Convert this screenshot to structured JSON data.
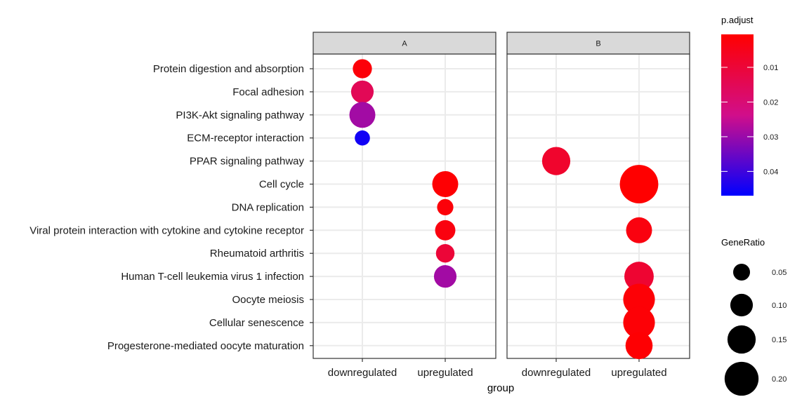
{
  "chart_data": {
    "type": "scatter",
    "subtype": "dot-plot-faceted",
    "xlabel": "group",
    "ylabel": "",
    "facets": [
      "A",
      "B"
    ],
    "groups": [
      "downregulated",
      "upregulated"
    ],
    "terms": [
      "Protein digestion and absorption",
      "Focal adhesion",
      "PI3K-Akt signaling pathway",
      "ECM-receptor interaction",
      "PPAR signaling pathway",
      "Cell cycle",
      "DNA replication",
      "Viral protein interaction with cytokine and cytokine receptor",
      "Rheumatoid arthritis",
      "Human T-cell leukemia virus 1 infection",
      "Oocyte meiosis",
      "Cellular senescence",
      "Progesterone-mediated oocyte maturation"
    ],
    "points": [
      {
        "facet": "A",
        "group": "downregulated",
        "term": "Protein digestion and absorption",
        "p_adjust": 0.002,
        "gene_ratio": 0.07
      },
      {
        "facet": "A",
        "group": "downregulated",
        "term": "Focal adhesion",
        "p_adjust": 0.015,
        "gene_ratio": 0.1
      },
      {
        "facet": "A",
        "group": "downregulated",
        "term": "PI3K-Akt signaling pathway",
        "p_adjust": 0.029,
        "gene_ratio": 0.13
      },
      {
        "facet": "A",
        "group": "downregulated",
        "term": "ECM-receptor interaction",
        "p_adjust": 0.045,
        "gene_ratio": 0.035
      },
      {
        "facet": "A",
        "group": "upregulated",
        "term": "Cell cycle",
        "p_adjust": 0.001,
        "gene_ratio": 0.13
      },
      {
        "facet": "A",
        "group": "upregulated",
        "term": "DNA replication",
        "p_adjust": 0.002,
        "gene_ratio": 0.045
      },
      {
        "facet": "A",
        "group": "upregulated",
        "term": "Viral protein interaction with cytokine and cytokine receptor",
        "p_adjust": 0.003,
        "gene_ratio": 0.08
      },
      {
        "facet": "A",
        "group": "upregulated",
        "term": "Rheumatoid arthritis",
        "p_adjust": 0.01,
        "gene_ratio": 0.065
      },
      {
        "facet": "A",
        "group": "upregulated",
        "term": "Human T-cell leukemia virus 1 infection",
        "p_adjust": 0.029,
        "gene_ratio": 0.1
      },
      {
        "facet": "B",
        "group": "downregulated",
        "term": "PPAR signaling pathway",
        "p_adjust": 0.008,
        "gene_ratio": 0.15
      },
      {
        "facet": "B",
        "group": "upregulated",
        "term": "Cell cycle",
        "p_adjust": 0.0005,
        "gene_ratio": 0.24
      },
      {
        "facet": "B",
        "group": "upregulated",
        "term": "Viral protein interaction with cytokine and cytokine receptor",
        "p_adjust": 0.003,
        "gene_ratio": 0.13
      },
      {
        "facet": "B",
        "group": "upregulated",
        "term": "Human T-cell leukemia virus 1 infection",
        "p_adjust": 0.009,
        "gene_ratio": 0.16
      },
      {
        "facet": "B",
        "group": "upregulated",
        "term": "Oocyte meiosis",
        "p_adjust": 0.0015,
        "gene_ratio": 0.18
      },
      {
        "facet": "B",
        "group": "upregulated",
        "term": "Cellular senescence",
        "p_adjust": 0.0015,
        "gene_ratio": 0.18
      },
      {
        "facet": "B",
        "group": "upregulated",
        "term": "Progesterone-mediated oocyte maturation",
        "p_adjust": 0.001,
        "gene_ratio": 0.14
      }
    ],
    "color_legend": {
      "title": "p.adjust",
      "ticks": [
        0.01,
        0.02,
        0.03,
        0.04
      ],
      "tick_labels": [
        "0.01",
        "0.02",
        "0.03",
        "0.04"
      ],
      "range": [
        0.0005,
        0.047
      ],
      "low_color": "#ff0000",
      "high_color": "#0000ff"
    },
    "size_legend": {
      "title": "GeneRatio",
      "values": [
        0.05,
        0.1,
        0.15,
        0.2
      ],
      "labels": [
        "0.05",
        "0.10",
        "0.15",
        "0.20"
      ]
    },
    "grid": true,
    "legend_position": "right",
    "colors": {
      "strip_fill": "#d9d9d9",
      "panel_border": "#333333",
      "grid_line": "#ebebeb",
      "legend_dot": "#000000"
    }
  }
}
